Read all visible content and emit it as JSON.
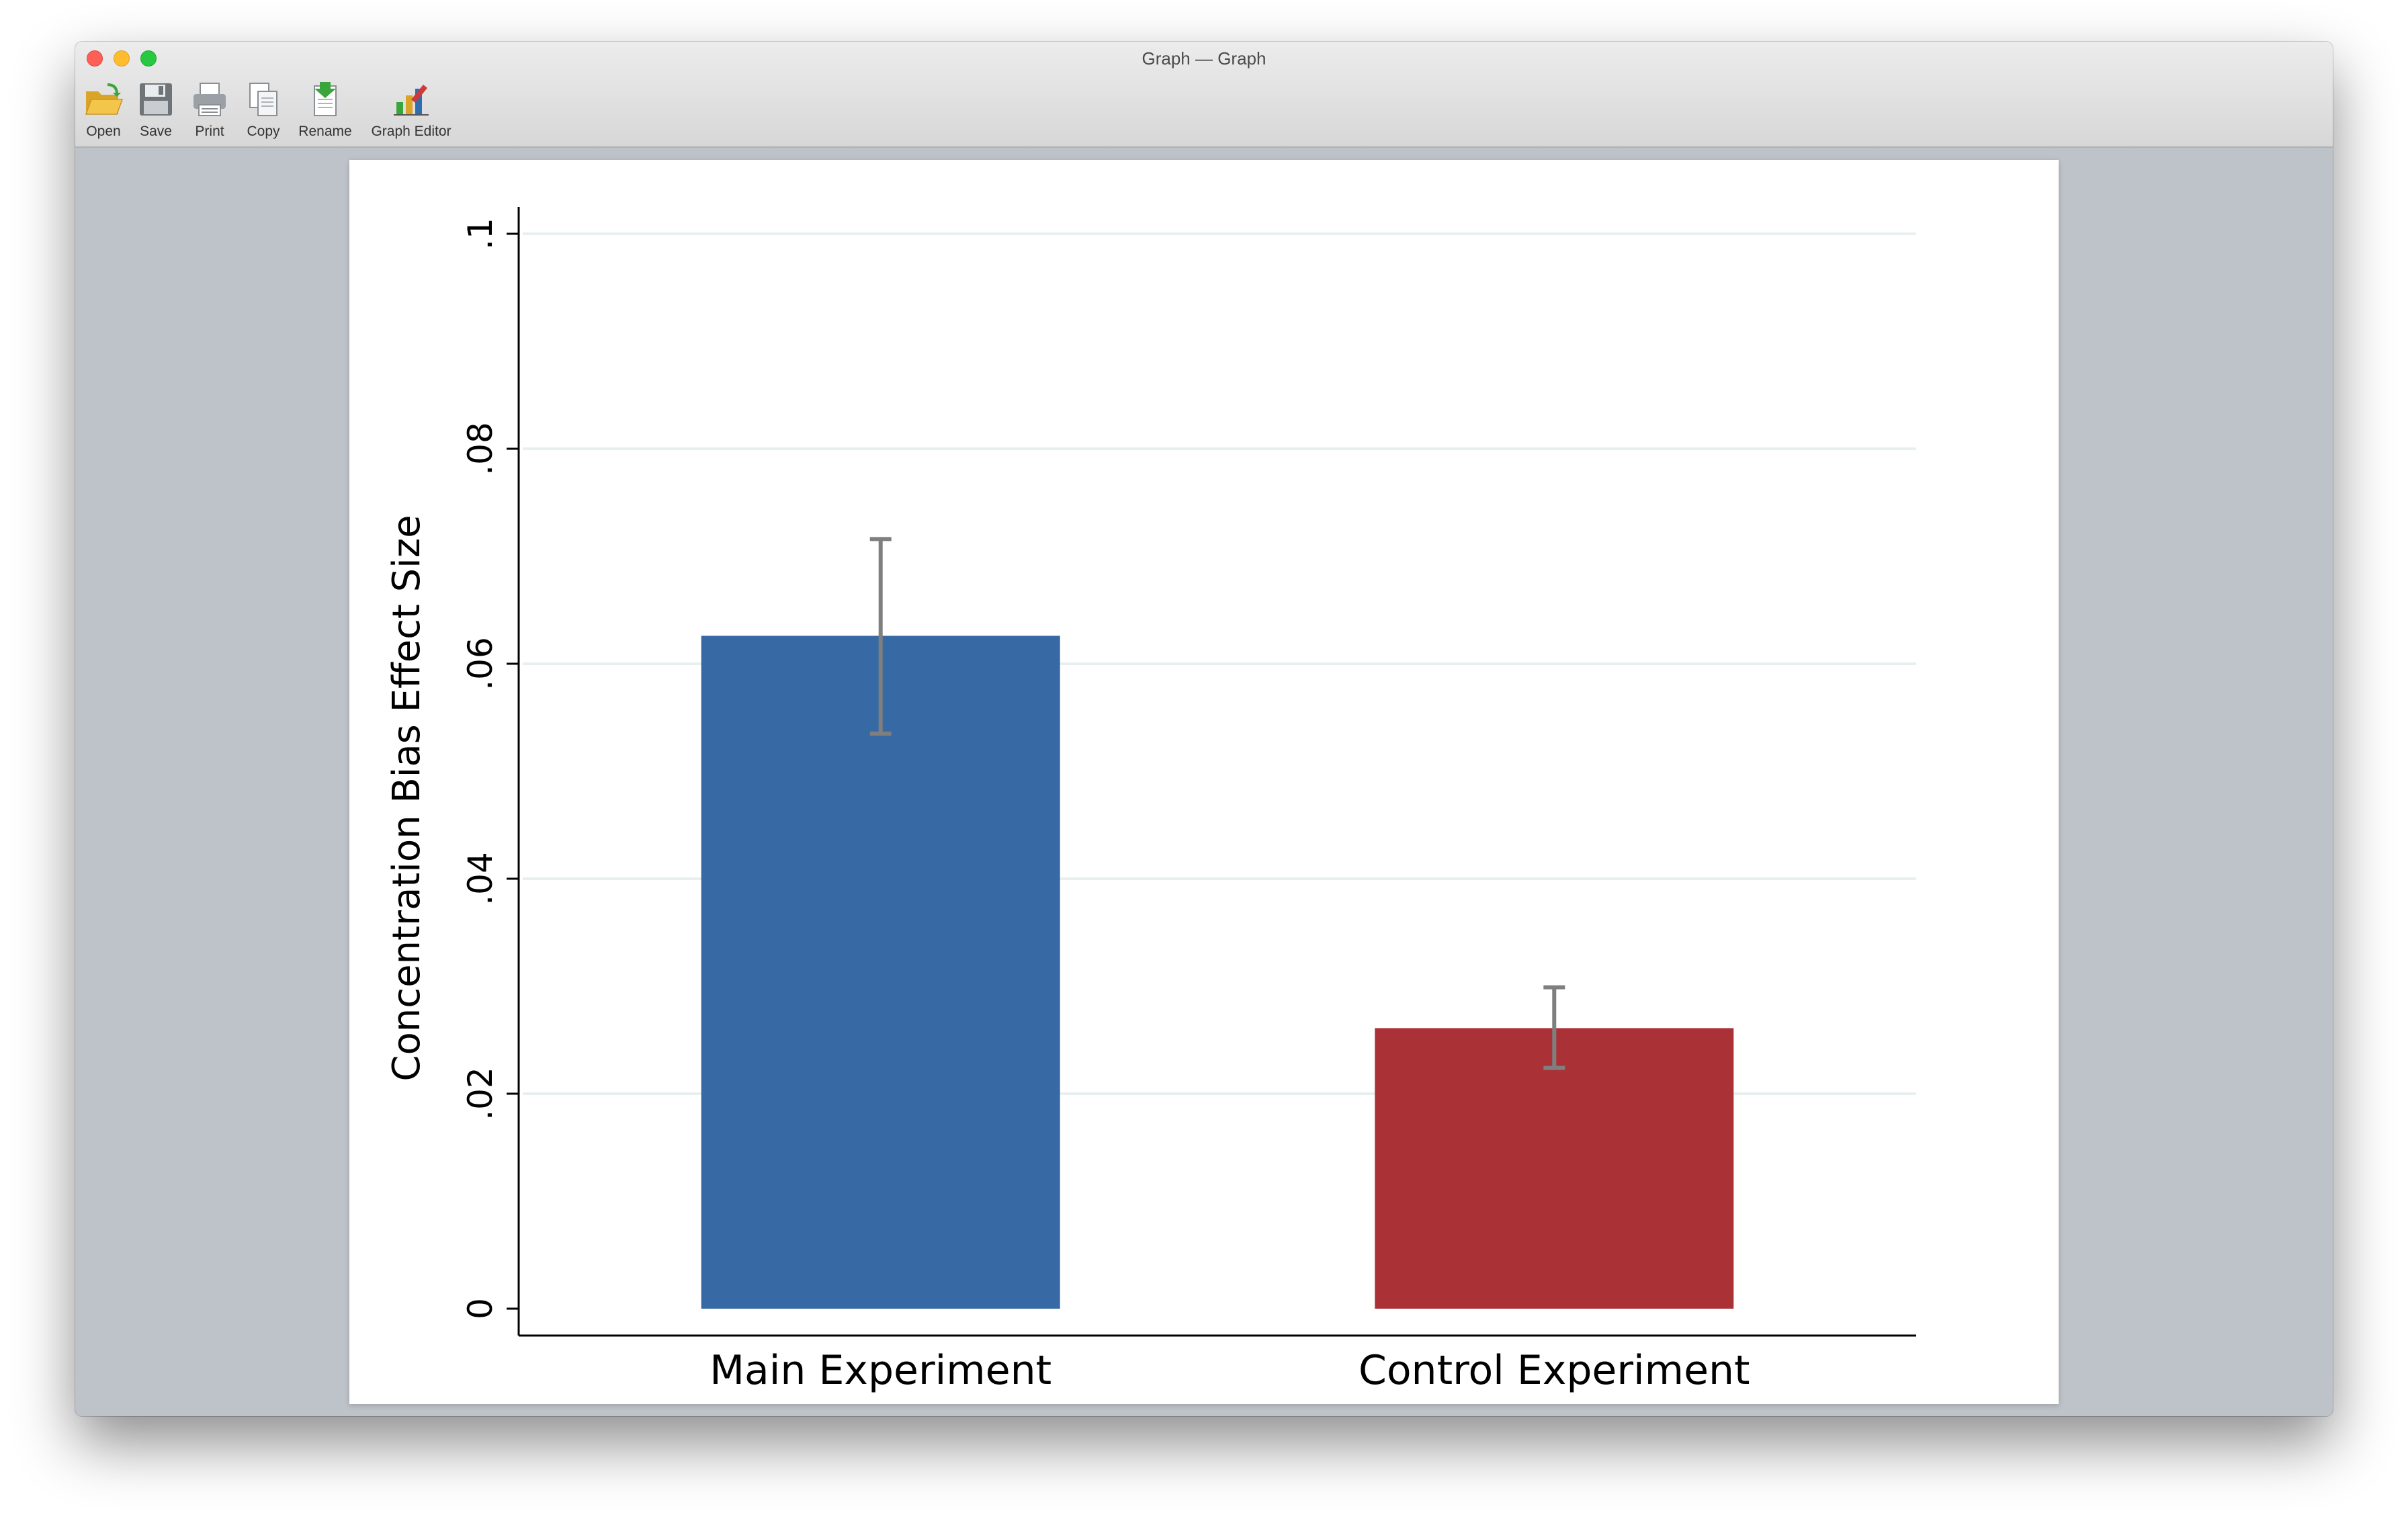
{
  "window": {
    "title": "Graph — Graph"
  },
  "toolbar": {
    "items": [
      {
        "label": "Open",
        "icon": "folder-open-icon"
      },
      {
        "label": "Save",
        "icon": "floppy-disk-icon"
      },
      {
        "label": "Print",
        "icon": "printer-icon"
      },
      {
        "label": "Copy",
        "icon": "copy-icon"
      },
      {
        "label": "Rename",
        "icon": "rename-icon"
      },
      {
        "label": "Graph Editor",
        "icon": "bar-chart-edit-icon"
      }
    ]
  },
  "colors": {
    "main_bar": "#3769a4",
    "control_bar": "#aa3236",
    "error_bar": "#7f7f7f",
    "grid": "#e8eff0"
  },
  "chart_data": {
    "type": "bar",
    "title": "",
    "xlabel": "",
    "ylabel": "Concentration Bias Effect Size",
    "categories": [
      "Main Experiment",
      "Control Experiment"
    ],
    "values": [
      0.0626,
      0.0261
    ],
    "error_low": [
      0.0535,
      0.0224
    ],
    "error_high": [
      0.0716,
      0.0299
    ],
    "ylim": [
      0,
      0.1
    ],
    "yticks": [
      0,
      0.02,
      0.04,
      0.06,
      0.08,
      0.1
    ],
    "ytick_labels": [
      "0",
      ".02",
      ".04",
      ".06",
      ".08",
      ".1"
    ],
    "grid": true,
    "legend": "none"
  }
}
